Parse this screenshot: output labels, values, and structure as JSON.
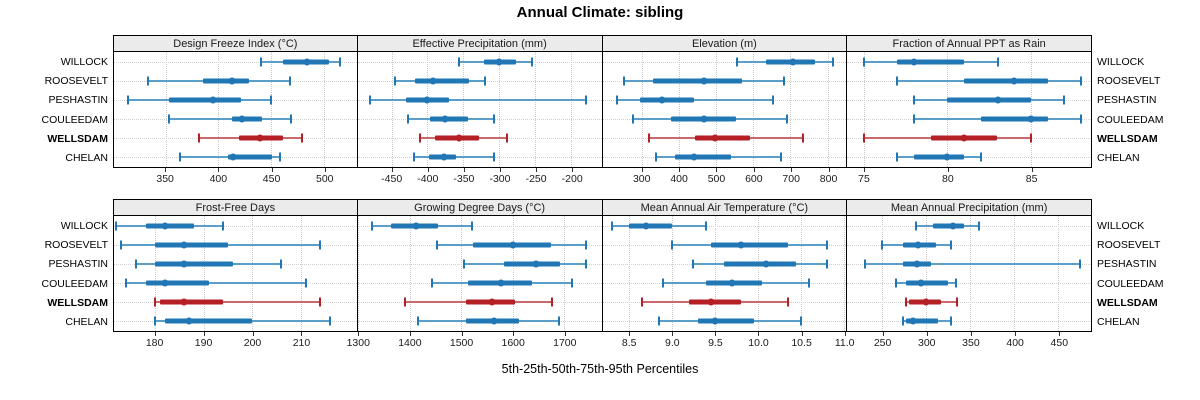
{
  "title": "Annual Climate: sibling",
  "xlabel": "5th-25th-50th-75th-95th Percentiles",
  "colors": {
    "blue": "#2077b4",
    "blue_light": "#5b9ec9",
    "red": "#b42025",
    "red_light": "#c9696c",
    "strip_bg": "#ebebeb",
    "gridline": "#c9c9c9",
    "panel_border": "#000000"
  },
  "stations": [
    "WILLOCK",
    "ROOSEVELT",
    "PESHASTIN",
    "COULEEDAM",
    "WELLSDAM",
    "CHELAN"
  ],
  "highlight_station": "WELLSDAM",
  "chart_data": {
    "type": "dot-whisker",
    "percentiles": [
      5,
      25,
      50,
      75,
      95
    ],
    "title": "Annual Climate: sibling",
    "xlabel": "5th-25th-50th-75th-95th Percentiles",
    "layout": {
      "rows": 2,
      "cols": 4,
      "grid": "dotted",
      "row_labels_both_sides": true
    },
    "panels": [
      {
        "title": "Design Freeze Index (°C)",
        "xmin": 301,
        "xmax": 531,
        "tick_values": [
          350,
          400,
          450,
          500
        ],
        "tick_labels": [
          "350",
          "400",
          "450",
          "500"
        ],
        "series": [
          [
            440,
            461,
            484,
            505,
            515
          ],
          [
            333,
            385,
            413,
            429,
            468
          ],
          [
            314,
            353,
            395,
            421,
            450
          ],
          [
            353,
            413,
            422,
            441,
            469
          ],
          [
            382,
            419,
            439,
            461,
            479
          ],
          [
            364,
            409,
            414,
            451,
            458
          ]
        ]
      },
      {
        "title": "Effective Precipitation (mm)",
        "xmin": -497,
        "xmax": -158,
        "tick_values": [
          -450,
          -400,
          -350,
          -300,
          -250,
          -200
        ],
        "tick_labels": [
          "-450",
          "-400",
          "-350",
          "-300",
          "-250",
          "-200"
        ],
        "series": [
          [
            -356,
            -321,
            -300,
            -277,
            -254
          ],
          [
            -445,
            -418,
            -393,
            -342,
            -320
          ],
          [
            -480,
            -430,
            -400,
            -370,
            -180
          ],
          [
            -427,
            -396,
            -375,
            -344,
            -308
          ],
          [
            -411,
            -389,
            -356,
            -329,
            -290
          ],
          [
            -419,
            -398,
            -377,
            -361,
            -308
          ]
        ]
      },
      {
        "title": "Elevation (m)",
        "xmin": 195,
        "xmax": 850,
        "tick_values": [
          300,
          400,
          500,
          600,
          700,
          800
        ],
        "tick_labels": [
          "300",
          "400",
          "500",
          "600",
          "700",
          "800"
        ],
        "series": [
          [
            557,
            635,
            707,
            765,
            814
          ],
          [
            254,
            330,
            468,
            570,
            684
          ],
          [
            235,
            297,
            356,
            440,
            653
          ],
          [
            278,
            379,
            468,
            555,
            691
          ],
          [
            321,
            443,
            497,
            591,
            735
          ],
          [
            340,
            390,
            440,
            541,
            674
          ]
        ]
      },
      {
        "title": "Fraction of Annual PPT as Rain",
        "xmin": 74,
        "xmax": 88.6,
        "tick_values": [
          75,
          80,
          85
        ],
        "tick_labels": [
          "75",
          "80",
          "85"
        ],
        "series": [
          [
            75,
            77,
            78,
            81,
            83
          ],
          [
            77,
            81,
            84,
            86,
            88
          ],
          [
            78,
            80,
            83,
            85,
            87
          ],
          [
            78,
            82,
            85,
            86,
            88
          ],
          [
            75,
            79,
            81,
            83,
            85
          ],
          [
            77,
            78,
            80,
            81,
            82
          ]
        ]
      },
      {
        "title": "Frost-Free Days",
        "xmin": 171.5,
        "xmax": 221.5,
        "tick_values": [
          180,
          190,
          200,
          210
        ],
        "tick_labels": [
          "180",
          "190",
          "200",
          "210"
        ],
        "series": [
          [
            172,
            178,
            182,
            188,
            194
          ],
          [
            173,
            180,
            186,
            195,
            214
          ],
          [
            176,
            180,
            186,
            196,
            206
          ],
          [
            174,
            178,
            182,
            191,
            211
          ],
          [
            180,
            181,
            186,
            194,
            214
          ],
          [
            180,
            182,
            187,
            200,
            216
          ]
        ]
      },
      {
        "title": "Growing Degree Days (°C)",
        "xmin": 1299,
        "xmax": 1773,
        "tick_values": [
          1300,
          1400,
          1500,
          1600,
          1700
        ],
        "tick_labels": [
          "1300",
          "1400",
          "1500",
          "1600",
          "1700"
        ],
        "series": [
          [
            1327,
            1363,
            1413,
            1456,
            1522
          ],
          [
            1453,
            1524,
            1600,
            1675,
            1742
          ],
          [
            1505,
            1584,
            1646,
            1692,
            1742
          ],
          [
            1443,
            1514,
            1577,
            1637,
            1716
          ],
          [
            1391,
            1510,
            1561,
            1604,
            1676
          ],
          [
            1417,
            1510,
            1563,
            1613,
            1690
          ]
        ]
      },
      {
        "title": "Mean Annual Air Temperature (°C)",
        "xmin": 8.19,
        "xmax": 11.03,
        "tick_values": [
          8.5,
          9.0,
          9.5,
          10.0,
          10.5,
          11.0
        ],
        "tick_labels": [
          "8.5",
          "9.0",
          "9.5",
          "10.0",
          "10.5",
          "11.0"
        ],
        "series": [
          [
            8.3,
            8.5,
            8.7,
            9.0,
            9.4
          ],
          [
            9.0,
            9.45,
            9.8,
            10.35,
            10.8
          ],
          [
            9.25,
            9.6,
            10.1,
            10.45,
            10.8
          ],
          [
            8.9,
            9.4,
            9.7,
            10.05,
            10.6
          ],
          [
            8.65,
            9.2,
            9.45,
            9.8,
            10.35
          ],
          [
            8.85,
            9.3,
            9.5,
            9.95,
            10.5
          ]
        ]
      },
      {
        "title": "Mean Annual Precipitation (mm)",
        "xmin": 210,
        "xmax": 487,
        "tick_values": [
          250,
          300,
          350,
          400,
          450
        ],
        "tick_labels": [
          "250",
          "300",
          "350",
          "400",
          "450"
        ],
        "series": [
          [
            288,
            307,
            330,
            343,
            360
          ],
          [
            250,
            273,
            290,
            311,
            328
          ],
          [
            230,
            273,
            289,
            305,
            475
          ],
          [
            265,
            277,
            294,
            324,
            334
          ],
          [
            277,
            280,
            300,
            316,
            335
          ],
          [
            273,
            277,
            285,
            313,
            328
          ]
        ]
      }
    ]
  }
}
